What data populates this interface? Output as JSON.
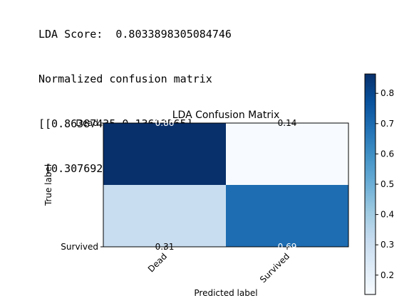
{
  "output_lines": [
    "LDA Score:  0.8033898305084746",
    "Normalized confusion matrix",
    "[[0.86387435 0.13612565]",
    " [0.30769231 0.69230769]]"
  ],
  "chart_data": {
    "type": "heatmap",
    "title": "LDA Confusion Matrix",
    "xlabel": "Predicted label",
    "ylabel": "True label",
    "x_categories": [
      "Dead",
      "Survived"
    ],
    "y_categories": [
      "Dead",
      "Survived"
    ],
    "values": [
      [
        0.86387435,
        0.13612565
      ],
      [
        0.30769231,
        0.69230769
      ]
    ],
    "cell_labels": [
      [
        "0.86",
        "0.14"
      ],
      [
        "0.31",
        "0.69"
      ]
    ],
    "colormap": "Blues",
    "colorbar": {
      "ticks": [
        "0.2",
        "0.3",
        "0.4",
        "0.5",
        "0.6",
        "0.7",
        "0.8"
      ],
      "min": 0.13612565,
      "max": 0.86387435
    }
  }
}
